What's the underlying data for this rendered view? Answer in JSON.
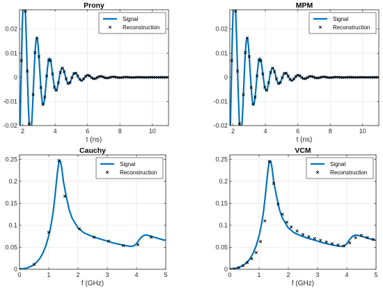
{
  "chart_data": [
    {
      "type": "line",
      "title": "Prony",
      "xlabel": "t (ns)",
      "ylabel": "",
      "xlim": [
        1.8,
        11
      ],
      "ylim": [
        -0.02,
        0.028
      ],
      "xticks": [
        "2",
        "4",
        "6",
        "8",
        "10"
      ],
      "xtick_values": [
        2,
        4,
        6,
        8,
        10
      ],
      "yticks": [
        "-0.02",
        "-0.01",
        "0",
        "0.01",
        "0.02"
      ],
      "ytick_values": [
        -0.02,
        -0.01,
        0,
        0.01,
        0.02
      ],
      "grid": true,
      "legend_position": "top-right",
      "model": {
        "kind": "damped_sine",
        "t0": 1.8,
        "amplitude": 0.044,
        "decay": 0.92,
        "frequency_ghz": 1.27,
        "phase": -0.78,
        "x_end": 11,
        "marker_step": 0.12
      },
      "series": [
        {
          "name": "Signal",
          "style": "solid-line",
          "color": "#0072BD"
        },
        {
          "name": "Reconstruction",
          "style": "x-markers",
          "color": "#000000"
        }
      ]
    },
    {
      "type": "line",
      "title": "MPM",
      "xlabel": "t (ns)",
      "ylabel": "",
      "xlim": [
        1.8,
        11
      ],
      "ylim": [
        -0.02,
        0.028
      ],
      "xticks": [
        "2",
        "4",
        "6",
        "8",
        "10"
      ],
      "xtick_values": [
        2,
        4,
        6,
        8,
        10
      ],
      "yticks": [
        "-0.02",
        "-0.01",
        "0",
        "0.01",
        "0.02"
      ],
      "ytick_values": [
        -0.02,
        -0.01,
        0,
        0.01,
        0.02
      ],
      "grid": true,
      "legend_position": "top-right",
      "model": {
        "kind": "damped_sine",
        "t0": 1.8,
        "amplitude": 0.044,
        "decay": 0.92,
        "frequency_ghz": 1.27,
        "phase": -0.78,
        "x_end": 11,
        "marker_step": 0.12
      },
      "series": [
        {
          "name": "Signal",
          "style": "solid-line",
          "color": "#0072BD"
        },
        {
          "name": "Reconstruction",
          "style": "x-markers",
          "color": "#000000"
        }
      ]
    },
    {
      "type": "line",
      "title": "Cauchy",
      "xlabel": "f (GHz)",
      "ylabel": "",
      "xlim": [
        0,
        5
      ],
      "ylim": [
        0,
        0.26
      ],
      "xticks": [
        "0",
        "1",
        "2",
        "3",
        "4",
        "5"
      ],
      "xtick_values": [
        0,
        1,
        2,
        3,
        4,
        5
      ],
      "yticks": [
        "0",
        "0.05",
        "0.1",
        "0.15",
        "0.2",
        "0.25"
      ],
      "ytick_values": [
        0,
        0.05,
        0.1,
        0.15,
        0.2,
        0.25
      ],
      "grid": true,
      "legend_position": "top-right",
      "signal": {
        "x": [
          0,
          0.1,
          0.2,
          0.3,
          0.4,
          0.5,
          0.6,
          0.7,
          0.8,
          0.9,
          1.0,
          1.05,
          1.1,
          1.15,
          1.2,
          1.25,
          1.3,
          1.35,
          1.4,
          1.45,
          1.5,
          1.6,
          1.7,
          1.8,
          2.0,
          2.2,
          2.4,
          2.6,
          2.8,
          3.0,
          3.2,
          3.4,
          3.6,
          3.8,
          3.9,
          4.0,
          4.1,
          4.2,
          4.3,
          4.4,
          4.5,
          4.6,
          4.7,
          4.8,
          4.9,
          5.0
        ],
        "y": [
          0.0,
          0.001,
          0.002,
          0.004,
          0.007,
          0.011,
          0.017,
          0.025,
          0.037,
          0.053,
          0.076,
          0.091,
          0.109,
          0.13,
          0.158,
          0.19,
          0.222,
          0.245,
          0.246,
          0.228,
          0.2,
          0.165,
          0.135,
          0.116,
          0.094,
          0.083,
          0.077,
          0.072,
          0.068,
          0.064,
          0.06,
          0.057,
          0.054,
          0.052,
          0.053,
          0.058,
          0.068,
          0.075,
          0.078,
          0.077,
          0.075,
          0.073,
          0.071,
          0.069,
          0.067,
          0.066
        ]
      },
      "reconstruction": {
        "x": [
          0,
          0.5,
          1.0,
          1.35,
          1.55,
          2.05,
          2.55,
          3.05,
          3.55,
          4.05,
          4.5
        ],
        "y": [
          0.0,
          0.011,
          0.084,
          0.247,
          0.166,
          0.092,
          0.073,
          0.064,
          0.054,
          0.056,
          0.073
        ]
      },
      "series": [
        {
          "name": "Signal",
          "style": "solid-line",
          "color": "#0072BD"
        },
        {
          "name": "Reconstruction",
          "style": "x-markers",
          "color": "#000000"
        }
      ]
    },
    {
      "type": "line",
      "title": "VCM",
      "xlabel": "f (GHz)",
      "ylabel": "",
      "xlim": [
        0,
        5
      ],
      "ylim": [
        0,
        0.26
      ],
      "xticks": [
        "0",
        "1",
        "2",
        "3",
        "4",
        "5"
      ],
      "xtick_values": [
        0,
        1,
        2,
        3,
        4,
        5
      ],
      "yticks": [
        "0",
        "0.05",
        "0.1",
        "0.15",
        "0.2",
        "0.25"
      ],
      "ytick_values": [
        0,
        0.05,
        0.1,
        0.15,
        0.2,
        0.25
      ],
      "grid": true,
      "legend_position": "top-right",
      "signal": {
        "x": [
          0,
          0.1,
          0.2,
          0.3,
          0.4,
          0.5,
          0.6,
          0.7,
          0.8,
          0.9,
          1.0,
          1.05,
          1.1,
          1.15,
          1.2,
          1.25,
          1.3,
          1.35,
          1.4,
          1.45,
          1.5,
          1.6,
          1.7,
          1.8,
          2.0,
          2.2,
          2.4,
          2.6,
          2.8,
          3.0,
          3.2,
          3.4,
          3.6,
          3.8,
          3.9,
          4.0,
          4.1,
          4.2,
          4.3,
          4.4,
          4.5,
          4.6,
          4.7,
          4.8,
          4.9,
          5.0
        ],
        "y": [
          0.0,
          0.001,
          0.002,
          0.004,
          0.007,
          0.011,
          0.017,
          0.025,
          0.037,
          0.053,
          0.076,
          0.091,
          0.109,
          0.13,
          0.158,
          0.19,
          0.222,
          0.245,
          0.246,
          0.228,
          0.2,
          0.165,
          0.135,
          0.116,
          0.094,
          0.083,
          0.077,
          0.072,
          0.068,
          0.064,
          0.06,
          0.057,
          0.054,
          0.052,
          0.053,
          0.058,
          0.068,
          0.075,
          0.078,
          0.077,
          0.075,
          0.073,
          0.071,
          0.069,
          0.067,
          0.066
        ]
      },
      "reconstruction": {
        "x": [
          0,
          0.15,
          0.3,
          0.45,
          0.6,
          0.75,
          0.9,
          1.05,
          1.2,
          1.35,
          1.5,
          1.65,
          1.8,
          1.95,
          2.1,
          2.3,
          2.5,
          2.7,
          2.9,
          3.1,
          3.3,
          3.5,
          3.7,
          3.9,
          4.1,
          4.3,
          4.5,
          4.7,
          4.9
        ],
        "y": [
          0.0,
          0.001,
          0.004,
          0.008,
          0.015,
          0.024,
          0.038,
          0.063,
          0.11,
          0.245,
          0.195,
          0.148,
          0.125,
          0.107,
          0.096,
          0.087,
          0.079,
          0.074,
          0.07,
          0.066,
          0.062,
          0.058,
          0.055,
          0.053,
          0.06,
          0.072,
          0.077,
          0.072,
          0.068
        ]
      },
      "series": [
        {
          "name": "Signal",
          "style": "solid-line",
          "color": "#0072BD"
        },
        {
          "name": "Reconstruction",
          "style": "x-markers",
          "color": "#000000"
        }
      ]
    }
  ]
}
